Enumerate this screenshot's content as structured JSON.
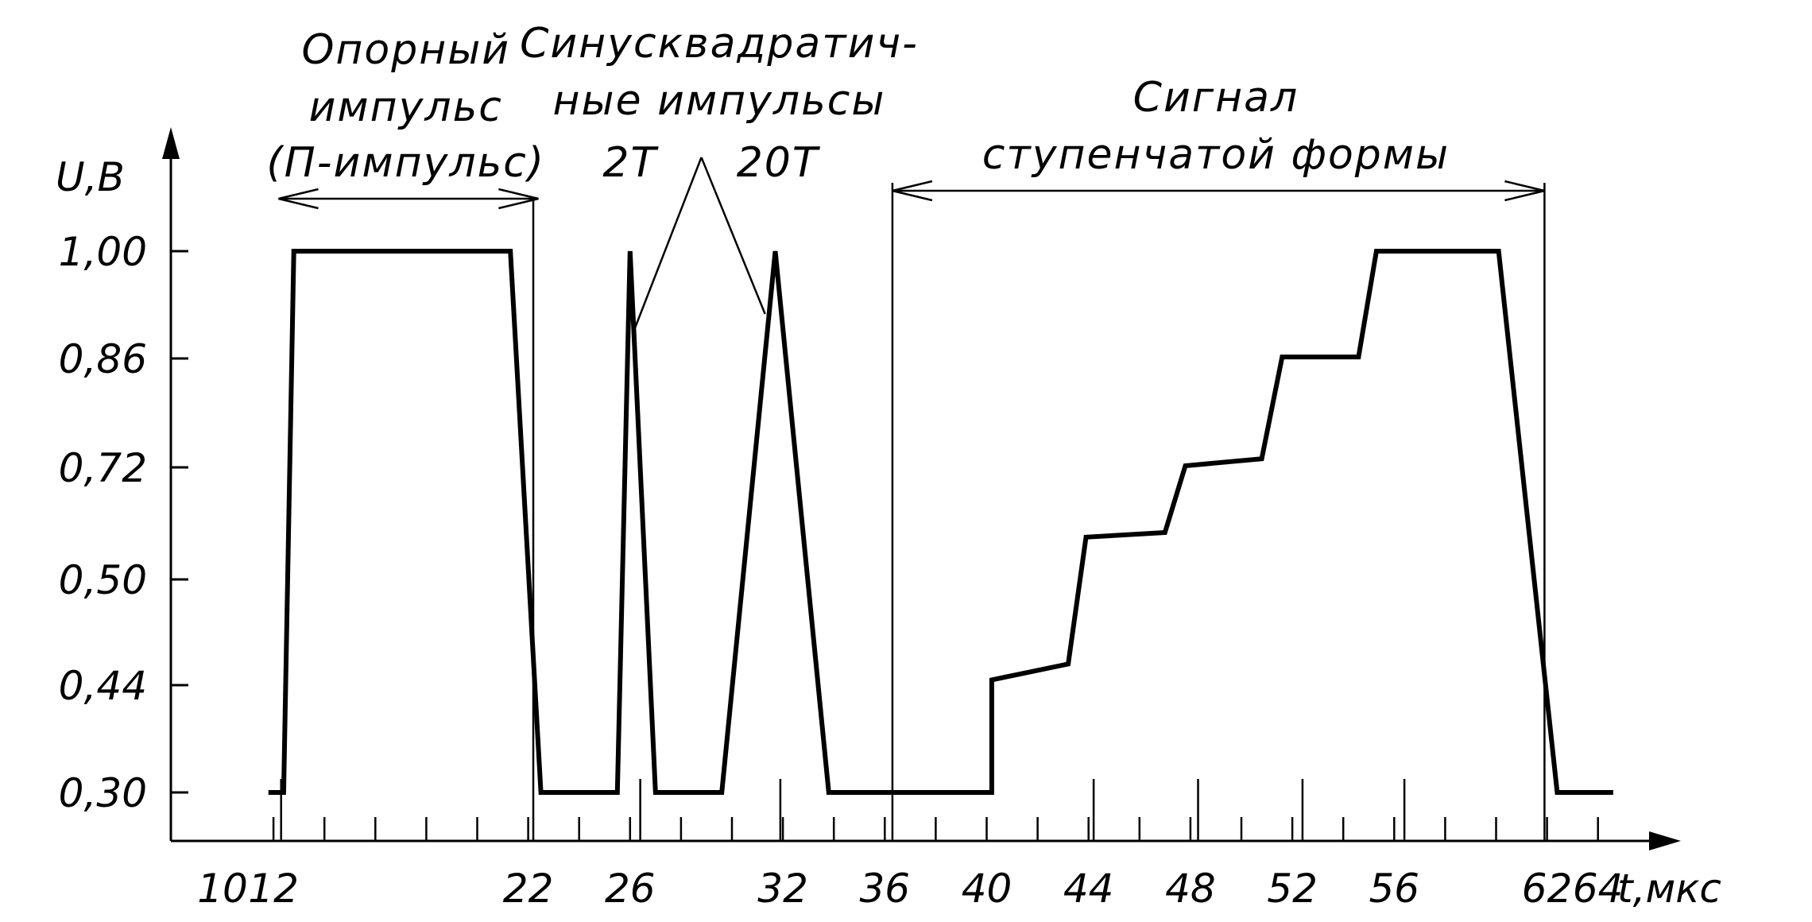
{
  "chart_data": {
    "type": "line",
    "title": "",
    "xlabel": "t,мкс",
    "ylabel": "U,В",
    "xlim": [
      10,
      66
    ],
    "x_ticks": [
      10,
      12,
      22,
      26,
      32,
      36,
      40,
      44,
      48,
      52,
      56,
      62,
      64
    ],
    "x_tick_labels": [
      "10",
      "12",
      "22",
      "26",
      "32",
      "36",
      "40",
      "44",
      "48",
      "52",
      "56",
      "62",
      "64"
    ],
    "y_ticks": [
      0.3,
      0.44,
      0.5,
      0.72,
      0.86,
      1.0
    ],
    "y_tick_labels": [
      "0,30",
      "0,44",
      "0,50",
      "0,72",
      "0,86",
      "1,00"
    ],
    "grid": false,
    "series": [
      {
        "points": [
          [
            11.8,
            0.3
          ],
          [
            12.4,
            0.3
          ],
          [
            12.8,
            1.0
          ],
          [
            21.3,
            1.0
          ],
          [
            22.5,
            0.3
          ],
          [
            25.5,
            0.3
          ],
          [
            26.0,
            1.0
          ],
          [
            27.0,
            0.3
          ],
          [
            29.6,
            0.3
          ],
          [
            31.7,
            1.0
          ],
          [
            33.8,
            0.3
          ],
          [
            40.2,
            0.3
          ],
          [
            40.2,
            0.443
          ],
          [
            43.2,
            0.452
          ],
          [
            43.9,
            0.583
          ],
          [
            47.0,
            0.592
          ],
          [
            47.8,
            0.722
          ],
          [
            50.8,
            0.731
          ],
          [
            51.6,
            0.862
          ],
          [
            54.6,
            0.862
          ],
          [
            55.3,
            1.0
          ],
          [
            60.1,
            1.0
          ],
          [
            62.4,
            0.3
          ],
          [
            64.6,
            0.3
          ]
        ]
      }
    ],
    "annotations": [
      {
        "lines": [
          "Опорный",
          "импульс",
          "(П-импульс)"
        ],
        "x": 17.2,
        "span": [
          12.2,
          22.4
        ]
      },
      {
        "lines": [
          "Синусквадратич-",
          "ные импульсы"
        ],
        "x": 29.5
      },
      {
        "text": "2T",
        "x": 26.0
      },
      {
        "text": "20T",
        "x": 31.8
      },
      {
        "lines": [
          "Сигнал",
          "ступенчатой формы"
        ],
        "x": 49.0,
        "span": [
          36.3,
          61.9
        ]
      }
    ]
  }
}
